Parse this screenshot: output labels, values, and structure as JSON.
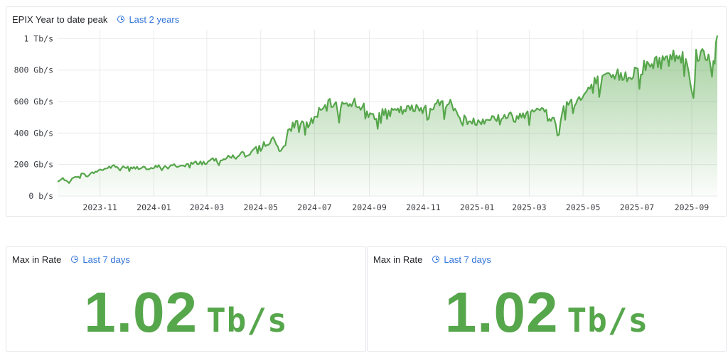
{
  "chart_panel": {
    "title": "EPIX Year to date peak",
    "time_range": "Last 2 years"
  },
  "stat_panels": [
    {
      "title": "Max in Rate",
      "time_range": "Last 7 days",
      "value": "1.02",
      "unit": "Tb/s"
    },
    {
      "title": "Max in Rate",
      "time_range": "Last 7 days",
      "value": "1.02",
      "unit": "Tb/s"
    }
  ],
  "colors": {
    "series": "#56a64b",
    "link": "#3274d9",
    "grid": "#e9eaec"
  },
  "chart_data": {
    "type": "area",
    "title": "EPIX Year to date peak",
    "y_unit": "Gb/s",
    "ylim": [
      0,
      1020
    ],
    "xlim": [
      "2023-09-14",
      "2025-09-30"
    ],
    "y_ticks": [
      {
        "value": 0,
        "label": "0 b/s"
      },
      {
        "value": 200,
        "label": "200 Gb/s"
      },
      {
        "value": 400,
        "label": "400 Gb/s"
      },
      {
        "value": 600,
        "label": "600 Gb/s"
      },
      {
        "value": 800,
        "label": "800 Gb/s"
      },
      {
        "value": 1000,
        "label": "1 Tb/s"
      }
    ],
    "x_ticks": [
      {
        "date": "2023-11-01",
        "label": "2023-11"
      },
      {
        "date": "2024-01-01",
        "label": "2024-01"
      },
      {
        "date": "2024-03-01",
        "label": "2024-03"
      },
      {
        "date": "2024-05-01",
        "label": "2024-05"
      },
      {
        "date": "2024-07-01",
        "label": "2024-07"
      },
      {
        "date": "2024-09-01",
        "label": "2024-09"
      },
      {
        "date": "2024-11-01",
        "label": "2024-11"
      },
      {
        "date": "2025-01-01",
        "label": "2025-01"
      },
      {
        "date": "2025-03-01",
        "label": "2025-03"
      },
      {
        "date": "2025-05-01",
        "label": "2025-05"
      },
      {
        "date": "2025-07-01",
        "label": "2025-07"
      },
      {
        "date": "2025-09-01",
        "label": "2025-09"
      }
    ],
    "grid": true,
    "legend": false,
    "series": [
      {
        "points": [
          [
            "2023-09-14",
            90
          ],
          [
            "2023-09-20",
            110
          ],
          [
            "2023-09-27",
            95
          ],
          [
            "2023-10-04",
            120
          ],
          [
            "2023-10-11",
            140
          ],
          [
            "2023-10-18",
            130
          ],
          [
            "2023-10-25",
            150
          ],
          [
            "2023-11-01",
            165
          ],
          [
            "2023-11-08",
            175
          ],
          [
            "2023-11-15",
            190
          ],
          [
            "2023-11-22",
            180
          ],
          [
            "2023-11-29",
            185
          ],
          [
            "2023-12-06",
            175
          ],
          [
            "2023-12-13",
            180
          ],
          [
            "2023-12-20",
            185
          ],
          [
            "2023-12-27",
            165
          ],
          [
            "2024-01-03",
            185
          ],
          [
            "2024-01-10",
            190
          ],
          [
            "2024-01-17",
            180
          ],
          [
            "2024-01-24",
            195
          ],
          [
            "2024-01-31",
            190
          ],
          [
            "2024-02-07",
            200
          ],
          [
            "2024-02-14",
            205
          ],
          [
            "2024-02-21",
            215
          ],
          [
            "2024-02-28",
            210
          ],
          [
            "2024-03-06",
            225
          ],
          [
            "2024-03-13",
            235
          ],
          [
            "2024-03-20",
            240
          ],
          [
            "2024-03-27",
            245
          ],
          [
            "2024-04-03",
            260
          ],
          [
            "2024-04-10",
            270
          ],
          [
            "2024-04-17",
            250
          ],
          [
            "2024-04-24",
            290
          ],
          [
            "2024-05-01",
            320
          ],
          [
            "2024-05-08",
            340
          ],
          [
            "2024-05-15",
            355
          ],
          [
            "2024-05-22",
            300
          ],
          [
            "2024-05-29",
            320
          ],
          [
            "2024-06-01",
            400
          ],
          [
            "2024-06-08",
            460
          ],
          [
            "2024-06-15",
            470
          ],
          [
            "2024-06-22",
            450
          ],
          [
            "2024-06-29",
            480
          ],
          [
            "2024-07-06",
            530
          ],
          [
            "2024-07-13",
            560
          ],
          [
            "2024-07-20",
            590
          ],
          [
            "2024-07-27",
            560
          ],
          [
            "2024-08-03",
            580
          ],
          [
            "2024-08-10",
            600
          ],
          [
            "2024-08-17",
            590
          ],
          [
            "2024-08-24",
            570
          ],
          [
            "2024-08-31",
            520
          ],
          [
            "2024-09-07",
            510
          ],
          [
            "2024-09-14",
            530
          ],
          [
            "2024-09-21",
            520
          ],
          [
            "2024-09-28",
            530
          ],
          [
            "2024-10-05",
            540
          ],
          [
            "2024-10-12",
            545
          ],
          [
            "2024-10-19",
            550
          ],
          [
            "2024-10-26",
            555
          ],
          [
            "2024-11-02",
            560
          ],
          [
            "2024-11-09",
            570
          ],
          [
            "2024-11-16",
            580
          ],
          [
            "2024-11-23",
            590
          ],
          [
            "2024-11-30",
            600
          ],
          [
            "2024-12-07",
            540
          ],
          [
            "2024-12-14",
            495
          ],
          [
            "2024-12-21",
            480
          ],
          [
            "2024-12-28",
            470
          ],
          [
            "2025-01-04",
            480
          ],
          [
            "2025-01-11",
            490
          ],
          [
            "2025-01-18",
            495
          ],
          [
            "2025-01-25",
            500
          ],
          [
            "2025-02-01",
            510
          ],
          [
            "2025-02-08",
            505
          ],
          [
            "2025-02-15",
            495
          ],
          [
            "2025-02-22",
            520
          ],
          [
            "2025-03-01",
            540
          ],
          [
            "2025-03-08",
            570
          ],
          [
            "2025-03-15",
            545
          ],
          [
            "2025-03-22",
            520
          ],
          [
            "2025-03-29",
            480
          ],
          [
            "2025-04-02",
            430
          ],
          [
            "2025-04-09",
            560
          ],
          [
            "2025-04-16",
            600
          ],
          [
            "2025-04-23",
            610
          ],
          [
            "2025-04-30",
            620
          ],
          [
            "2025-05-07",
            680
          ],
          [
            "2025-05-14",
            720
          ],
          [
            "2025-05-21",
            730
          ],
          [
            "2025-05-28",
            740
          ],
          [
            "2025-06-04",
            750
          ],
          [
            "2025-06-11",
            770
          ],
          [
            "2025-06-18",
            760
          ],
          [
            "2025-06-25",
            780
          ],
          [
            "2025-07-02",
            810
          ],
          [
            "2025-07-09",
            820
          ],
          [
            "2025-07-16",
            830
          ],
          [
            "2025-07-23",
            850
          ],
          [
            "2025-07-30",
            860
          ],
          [
            "2025-08-06",
            870
          ],
          [
            "2025-08-13",
            890
          ],
          [
            "2025-08-20",
            900
          ],
          [
            "2025-08-27",
            880
          ],
          [
            "2025-09-03",
            600
          ],
          [
            "2025-09-06",
            900
          ],
          [
            "2025-09-13",
            910
          ],
          [
            "2025-09-20",
            890
          ],
          [
            "2025-09-24",
            800
          ],
          [
            "2025-09-27",
            880
          ],
          [
            "2025-09-30",
            1020
          ]
        ]
      }
    ]
  }
}
